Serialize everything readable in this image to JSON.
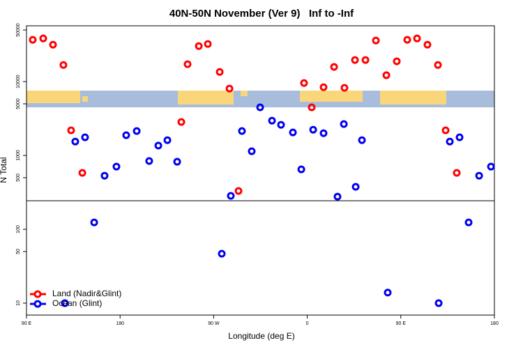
{
  "chart_data": {
    "type": "scatter",
    "title": "40N-50N November (Ver 9)   Inf to -Inf",
    "x_label": "Longitude (deg E)",
    "y_label": "N Total",
    "log_y": true,
    "legend": "bottom-left",
    "xlim": [
      90,
      540
    ],
    "xticks": [
      {
        "value": 90,
        "label": "90 E"
      },
      {
        "value": 180,
        "label": "180"
      },
      {
        "value": 270,
        "label": "90 W"
      },
      {
        "value": 360,
        "label": "0"
      },
      {
        "value": 450,
        "label": "90 E"
      },
      {
        "value": 540,
        "label": "180"
      }
    ],
    "ylim": [
      6.9,
      57000
    ],
    "yticks": [
      10,
      50,
      100,
      500,
      1000,
      5000,
      10000,
      50000
    ],
    "series": [
      {
        "name": "Land (Nadir&Glint)",
        "color": "#ff0000",
        "x": [
          96.0,
          106.1,
          115.5,
          125.5,
          132.9,
          143.7,
          238.9,
          244.9,
          255.7,
          264.4,
          275.8,
          285.2,
          293.9,
          356.9,
          364.3,
          375.7,
          385.8,
          395.8,
          405.9,
          416.0,
          426.0,
          436.1,
          446.1,
          456.2,
          465.6,
          475.6,
          485.7,
          493.1,
          503.8
        ],
        "values": [
          36800,
          38400,
          31600,
          16800,
          2190,
          581,
          2840,
          17200,
          30300,
          32300,
          13500,
          8050,
          330,
          9570,
          4480,
          8400,
          15800,
          8230,
          19600,
          19600,
          36000,
          12200,
          18800,
          36800,
          38400,
          31600,
          16800,
          2190,
          581
        ]
      },
      {
        "name": "Ocean (Glint)",
        "color": "#0000ee",
        "x": [
          126.9,
          136.9,
          146.3,
          155.1,
          165.1,
          176.5,
          185.9,
          196.0,
          208.0,
          216.8,
          225.5,
          234.9,
          277.8,
          286.5,
          297.2,
          306.6,
          314.7,
          326.1,
          334.8,
          346.2,
          354.3,
          365.7,
          375.7,
          389.1,
          395.2,
          406.6,
          412.6,
          437.4,
          486.4,
          497.1,
          506.5,
          515.2,
          525.3,
          536.7
        ],
        "values": [
          10,
          1540,
          1760,
          124,
          532,
          706,
          1880,
          2140,
          841,
          1360,
          1610,
          822,
          46.7,
          284,
          2140,
          1140,
          4480,
          2960,
          2600,
          2050,
          648,
          2230,
          2000,
          277,
          2660,
          376,
          1610,
          13.9,
          10,
          1540,
          1760,
          124,
          532,
          706
        ]
      }
    ]
  }
}
